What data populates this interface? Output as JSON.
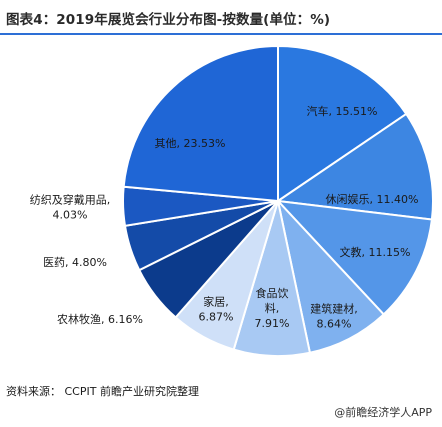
{
  "title": "图表4：2019年展览会行业分布图-按数量(单位：%)",
  "source": "资料来源：  CCPIT  前瞻产业研究院整理",
  "brand": "@前瞻经济学人APP",
  "chart_data": {
    "type": "pie",
    "title": "图表4：2019年展览会行业分布图-按数量(单位：%)",
    "slices": [
      {
        "label": "汽车",
        "value": 15.51,
        "display": "汽车, 15.51%",
        "color": "#2a78e0"
      },
      {
        "label": "休闲娱乐",
        "value": 11.4,
        "display": "休闲娱乐, 11.40%",
        "color": "#3d86e2"
      },
      {
        "label": "文教",
        "value": 11.15,
        "display": "文教, 11.15%",
        "color": "#5496e8"
      },
      {
        "label": "建筑建材",
        "value": 8.64,
        "display": "建筑建材,\n8.64%",
        "color": "#7fb1ef"
      },
      {
        "label": "食品饮料",
        "value": 7.91,
        "display": "食品饮\n料,\n7.91%",
        "color": "#a8c9f3"
      },
      {
        "label": "家居",
        "value": 6.87,
        "display": "家居,\n6.87%",
        "color": "#cfe0f8"
      },
      {
        "label": "农林牧渔",
        "value": 6.16,
        "display": "农林牧渔, 6.16%",
        "color": "#0c3b8c"
      },
      {
        "label": "医药",
        "value": 4.8,
        "display": "医药, 4.80%",
        "color": "#144ba8"
      },
      {
        "label": "纺织及穿戴用品",
        "value": 4.03,
        "display": "纺织及穿戴用品,\n4.03%",
        "color": "#1b58c2"
      },
      {
        "label": "其他",
        "value": 23.53,
        "display": "其他, 23.53%",
        "color": "#1f66d6"
      }
    ]
  }
}
